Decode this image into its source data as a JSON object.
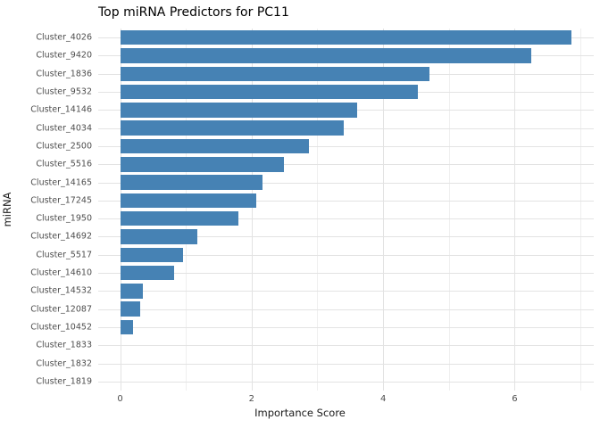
{
  "chart_data": {
    "type": "bar",
    "orientation": "horizontal",
    "title": "Top miRNA Predictors for PC11",
    "xlabel": "Importance Score",
    "ylabel": "miRNA",
    "categories": [
      "Cluster_4026",
      "Cluster_9420",
      "Cluster_1836",
      "Cluster_9532",
      "Cluster_14146",
      "Cluster_4034",
      "Cluster_2500",
      "Cluster_5516",
      "Cluster_14165",
      "Cluster_17245",
      "Cluster_1950",
      "Cluster_14692",
      "Cluster_5517",
      "Cluster_14610",
      "Cluster_14532",
      "Cluster_12087",
      "Cluster_10452",
      "Cluster_1833",
      "Cluster_1832",
      "Cluster_1819"
    ],
    "values": [
      6.86,
      6.25,
      4.7,
      4.53,
      3.6,
      3.4,
      2.87,
      2.49,
      2.17,
      2.07,
      1.8,
      1.17,
      0.96,
      0.82,
      0.34,
      0.3,
      0.2,
      0,
      0,
      0
    ],
    "xlim": [
      -0.34,
      7.19
    ],
    "xticks": [
      0,
      2,
      4,
      6
    ],
    "minor_gridlines": [
      1,
      3,
      5,
      7
    ],
    "grid": true,
    "legend_position": "none",
    "bar_color": "#4682B4",
    "background_color": "#ffffff",
    "major_grid_color": "#e2e2e2",
    "minor_grid_color": "#efefef",
    "tick_text_color": "#4d4d4d",
    "title_color": "#000000"
  }
}
